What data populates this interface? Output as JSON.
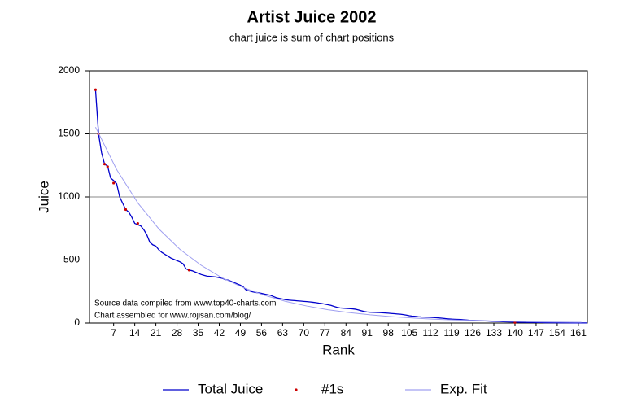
{
  "chart_data": {
    "type": "line",
    "title": "Artist Juice 2002",
    "subtitle": "chart juice is sum of chart positions",
    "x_label": "Rank",
    "y_label": "Juice",
    "annotations": [
      "Source data compiled from www.top40-charts.com",
      "Chart assembled for www.rojisan.com/blog/"
    ],
    "xlim": [
      -1,
      164
    ],
    "ylim": [
      0,
      2000
    ],
    "xticks": [
      7,
      14,
      21,
      28,
      35,
      42,
      49,
      56,
      63,
      70,
      77,
      84,
      91,
      98,
      105,
      112,
      119,
      126,
      133,
      140,
      147,
      154,
      161
    ],
    "yticks": [
      0,
      500,
      1000,
      1500,
      2000
    ],
    "grid": true,
    "legend": "bottom",
    "series": [
      {
        "name": "Total Juice",
        "type": "line",
        "color": "#0000cc",
        "x": [
          1,
          2,
          3,
          4,
          5,
          6,
          7,
          8,
          9,
          10,
          11,
          12,
          13,
          14,
          15,
          16,
          17,
          18,
          19,
          20,
          21,
          22,
          23,
          24,
          25,
          26,
          27,
          28,
          29,
          30,
          31,
          32,
          33,
          34,
          35,
          36,
          37,
          38,
          39,
          40,
          41,
          42,
          43,
          44,
          45,
          46,
          47,
          48,
          49,
          50,
          51,
          52,
          53,
          54,
          55,
          56,
          57,
          58,
          59,
          60,
          61,
          62,
          63,
          64,
          65,
          66,
          67,
          68,
          69,
          70,
          71,
          72,
          73,
          74,
          75,
          76,
          77,
          78,
          79,
          80,
          81,
          82,
          83,
          84,
          85,
          86,
          87,
          88,
          89,
          90,
          91,
          92,
          93,
          94,
          95,
          96,
          97,
          98,
          99,
          100,
          101,
          102,
          103,
          104,
          105,
          106,
          107,
          108,
          109,
          110,
          111,
          112,
          113,
          114,
          115,
          116,
          117,
          118,
          119,
          120,
          121,
          122,
          123,
          124,
          125,
          126,
          127,
          128,
          129,
          130,
          131,
          132,
          133,
          134,
          135,
          136,
          137,
          138,
          139,
          140,
          141,
          142,
          143,
          144,
          145,
          146,
          147,
          148,
          149,
          150,
          151,
          152,
          153,
          154,
          155,
          156,
          157,
          158,
          159,
          160,
          161,
          162,
          163,
          164
        ],
        "values": [
          1850,
          1500,
          1350,
          1260,
          1245,
          1150,
          1130,
          1105,
          1000,
          950,
          900,
          880,
          840,
          790,
          780,
          770,
          740,
          700,
          640,
          620,
          610,
          580,
          560,
          545,
          530,
          515,
          505,
          495,
          485,
          470,
          430,
          420,
          415,
          405,
          395,
          385,
          378,
          372,
          370,
          368,
          365,
          360,
          355,
          345,
          340,
          330,
          320,
          310,
          300,
          285,
          260,
          255,
          248,
          243,
          240,
          235,
          230,
          225,
          220,
          210,
          200,
          195,
          190,
          185,
          182,
          180,
          178,
          176,
          174,
          172,
          170,
          168,
          165,
          162,
          158,
          155,
          150,
          145,
          140,
          132,
          125,
          120,
          118,
          116,
          115,
          113,
          110,
          105,
          98,
          92,
          88,
          86,
          85,
          84,
          83,
          82,
          80,
          78,
          76,
          74,
          72,
          70,
          67,
          63,
          58,
          55,
          53,
          50,
          48,
          47,
          46,
          45,
          44,
          42,
          40,
          38,
          35,
          33,
          31,
          30,
          29,
          28,
          26,
          24,
          22,
          21,
          20,
          19,
          18,
          17,
          16,
          15,
          14,
          13,
          12,
          11,
          10,
          9,
          8,
          7,
          7,
          6,
          6,
          5,
          5,
          5,
          4,
          4,
          4,
          3,
          3,
          3,
          3,
          2,
          2,
          2,
          2,
          2,
          1,
          1,
          1,
          1,
          1,
          1
        ]
      },
      {
        "name": "#1s",
        "type": "scatter",
        "color": "#cc0000",
        "x": [
          1,
          2,
          4,
          5,
          7,
          11,
          15,
          32,
          140
        ],
        "values": [
          1850,
          1500,
          1260,
          1240,
          1110,
          900,
          790,
          420,
          5
        ]
      },
      {
        "name": "Exp. Fit",
        "type": "line",
        "color": "#a0a0f0",
        "x": [
          1,
          8,
          15,
          22,
          29,
          36,
          43,
          50,
          57,
          64,
          71,
          78,
          85,
          92,
          99,
          106,
          113,
          120,
          127,
          134,
          141,
          148,
          155,
          162
        ],
        "values": [
          1553,
          1217,
          953,
          746,
          584,
          458,
          358,
          281,
          220,
          172,
          135,
          106,
          83,
          65,
          51,
          40,
          31,
          24,
          19,
          15,
          12,
          9,
          7,
          6
        ]
      }
    ]
  }
}
